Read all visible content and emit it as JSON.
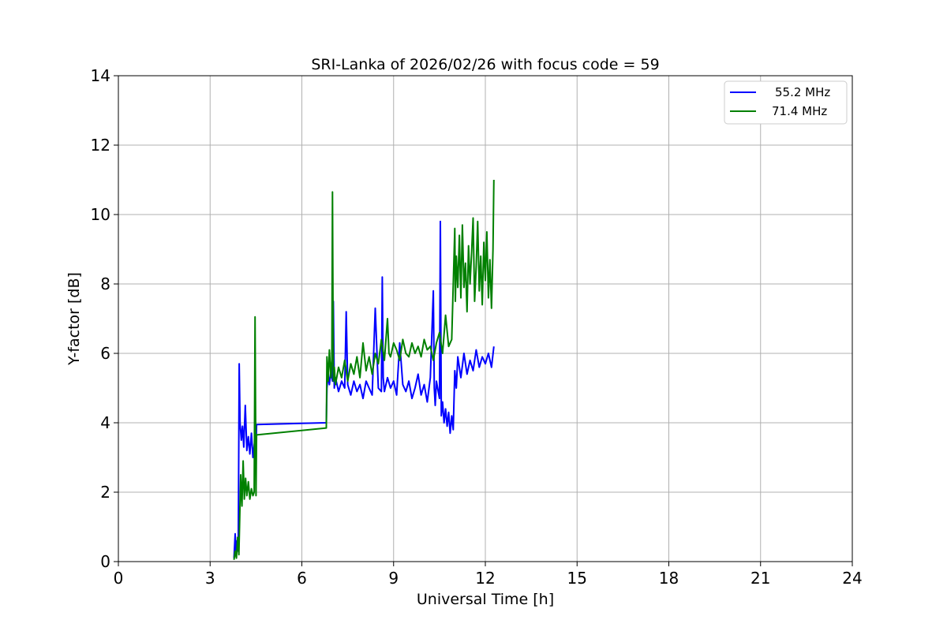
{
  "chart_data": {
    "type": "line",
    "title": "SRI-Lanka of 2026/02/26 with focus code = 59",
    "xlabel": "Universal Time [h]",
    "ylabel": "Y-factor [dB]",
    "xlim": [
      0,
      24
    ],
    "ylim": [
      0,
      14
    ],
    "xticks": [
      "0",
      "3",
      "6",
      "9",
      "12",
      "15",
      "18",
      "21",
      "24"
    ],
    "yticks": [
      "0",
      "2",
      "4",
      "6",
      "8",
      "10",
      "12",
      "14"
    ],
    "grid": true,
    "legend_position": "top-right",
    "series": [
      {
        "name": "55.2 MHz",
        "color": "#0000ff",
        "x": [
          3.78,
          3.82,
          3.85,
          3.88,
          3.92,
          3.95,
          3.98,
          4.02,
          4.06,
          4.1,
          4.15,
          4.2,
          4.25,
          4.3,
          4.35,
          4.4,
          4.45,
          4.5,
          4.52,
          6.8,
          6.82,
          6.86,
          6.9,
          6.95,
          7.0,
          7.03,
          7.06,
          7.1,
          7.2,
          7.3,
          7.4,
          7.45,
          7.5,
          7.6,
          7.7,
          7.8,
          7.9,
          8.0,
          8.1,
          8.2,
          8.3,
          8.4,
          8.5,
          8.6,
          8.63,
          8.66,
          8.7,
          8.8,
          8.9,
          9.0,
          9.1,
          9.2,
          9.3,
          9.4,
          9.5,
          9.6,
          9.7,
          9.8,
          9.9,
          10.0,
          10.1,
          10.2,
          10.3,
          10.33,
          10.36,
          10.4,
          10.5,
          10.53,
          10.56,
          10.6,
          10.65,
          10.7,
          10.75,
          10.8,
          10.85,
          10.9,
          10.95,
          11.0,
          11.05,
          11.1,
          11.2,
          11.3,
          11.4,
          11.5,
          11.6,
          11.7,
          11.8,
          11.9,
          12.0,
          12.1,
          12.2,
          12.28
        ],
        "y": [
          0.1,
          0.8,
          0.2,
          0.6,
          0.3,
          5.7,
          4.0,
          3.5,
          3.9,
          3.3,
          4.5,
          3.2,
          3.6,
          3.1,
          3.7,
          3.0,
          3.4,
          3.2,
          3.95,
          4.0,
          5.0,
          5.4,
          5.1,
          5.5,
          5.2,
          7.5,
          5.0,
          5.3,
          4.9,
          5.2,
          5.0,
          7.2,
          5.1,
          4.8,
          5.2,
          4.9,
          5.1,
          4.7,
          5.2,
          5.0,
          4.8,
          7.3,
          5.0,
          4.9,
          8.2,
          5.3,
          4.9,
          5.3,
          5.0,
          5.2,
          4.8,
          6.3,
          5.1,
          4.9,
          5.2,
          4.7,
          5.0,
          5.4,
          4.8,
          5.1,
          4.6,
          5.3,
          7.8,
          5.0,
          4.5,
          5.2,
          4.7,
          9.8,
          4.2,
          4.6,
          4.0,
          4.4,
          3.9,
          4.3,
          3.7,
          4.2,
          3.8,
          5.5,
          5.0,
          5.9,
          5.3,
          6.0,
          5.4,
          5.8,
          5.5,
          6.1,
          5.6,
          5.9,
          5.7,
          6.0,
          5.6,
          6.2
        ]
      },
      {
        "name": "71.4 MHz",
        "color": "#008000",
        "x": [
          3.78,
          3.82,
          3.86,
          3.9,
          3.94,
          3.97,
          4.0,
          4.04,
          4.08,
          4.12,
          4.16,
          4.2,
          4.25,
          4.3,
          4.35,
          4.4,
          4.44,
          4.47,
          4.5,
          4.52,
          6.8,
          6.82,
          6.86,
          6.9,
          6.95,
          6.98,
          7.0,
          7.03,
          7.06,
          7.1,
          7.2,
          7.3,
          7.4,
          7.5,
          7.6,
          7.7,
          7.8,
          7.9,
          8.0,
          8.1,
          8.2,
          8.3,
          8.4,
          8.5,
          8.6,
          8.7,
          8.8,
          8.85,
          8.9,
          9.0,
          9.1,
          9.2,
          9.3,
          9.4,
          9.5,
          9.6,
          9.7,
          9.8,
          9.9,
          10.0,
          10.1,
          10.2,
          10.3,
          10.4,
          10.5,
          10.6,
          10.7,
          10.8,
          10.9,
          11.0,
          11.02,
          11.05,
          11.1,
          11.15,
          11.2,
          11.25,
          11.3,
          11.35,
          11.4,
          11.45,
          11.5,
          11.55,
          11.6,
          11.65,
          11.7,
          11.75,
          11.8,
          11.85,
          11.9,
          11.95,
          12.0,
          12.05,
          12.1,
          12.15,
          12.2,
          12.25,
          12.28
        ],
        "y": [
          0.05,
          0.3,
          0.1,
          0.7,
          0.2,
          1.3,
          2.5,
          1.6,
          2.9,
          1.8,
          2.4,
          1.9,
          2.3,
          1.8,
          2.1,
          1.9,
          2.0,
          7.05,
          1.9,
          3.65,
          3.85,
          5.9,
          5.2,
          6.1,
          5.3,
          5.8,
          10.65,
          5.2,
          5.6,
          5.1,
          5.6,
          5.3,
          5.8,
          5.2,
          5.7,
          5.4,
          5.9,
          5.3,
          6.3,
          5.5,
          5.9,
          5.4,
          6.0,
          5.7,
          6.4,
          5.8,
          7.0,
          6.0,
          5.9,
          6.3,
          6.1,
          5.8,
          6.4,
          6.0,
          5.9,
          6.3,
          6.0,
          6.2,
          5.9,
          6.4,
          6.1,
          6.2,
          5.8,
          6.3,
          6.6,
          6.0,
          7.1,
          6.2,
          6.4,
          9.6,
          7.5,
          8.8,
          7.9,
          9.4,
          7.6,
          9.7,
          7.9,
          8.6,
          7.2,
          9.1,
          8.0,
          8.9,
          9.9,
          7.5,
          8.5,
          9.8,
          7.8,
          8.8,
          7.4,
          9.2,
          8.1,
          9.5,
          7.6,
          8.7,
          7.3,
          9.0,
          11.0
        ]
      }
    ]
  }
}
